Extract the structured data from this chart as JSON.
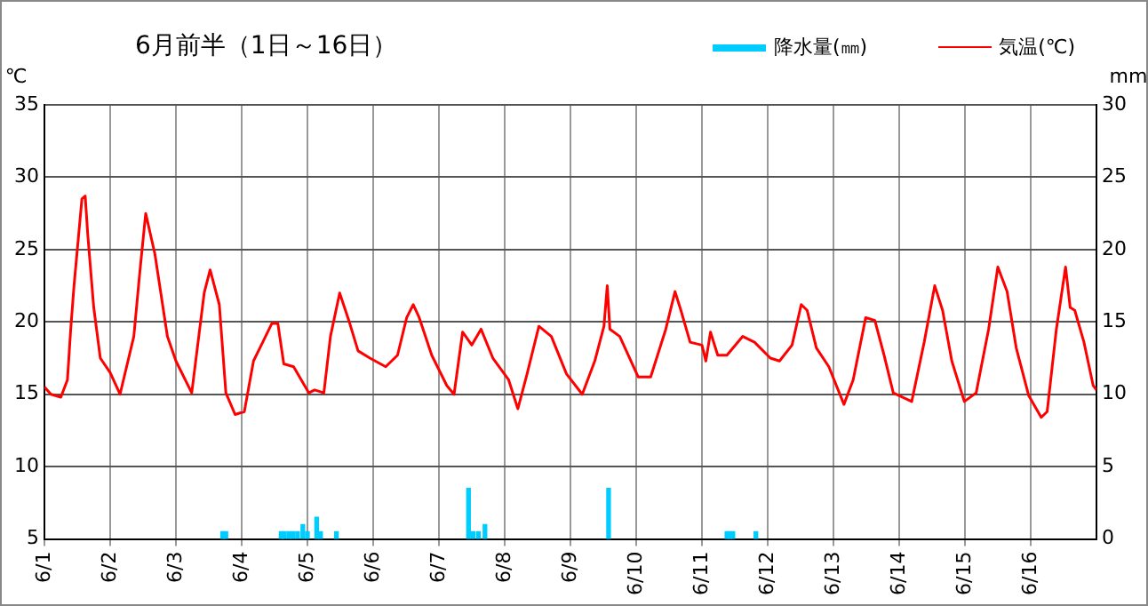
{
  "chart_data": {
    "type": "line",
    "title": "6月前半（1日～16日）",
    "ylabel": "℃",
    "y2label": "mm",
    "legend": "top right",
    "grid": true,
    "xlim": [
      "--06-01",
      "--06-17"
    ],
    "xticks": [
      {
        "value": "--06-01",
        "label": "6/1"
      },
      {
        "value": "--06-02",
        "label": "6/2"
      },
      {
        "value": "--06-03",
        "label": "6/3"
      },
      {
        "value": "--06-04",
        "label": "6/4"
      },
      {
        "value": "--06-05",
        "label": "6/5"
      },
      {
        "value": "--06-06",
        "label": "6/6"
      },
      {
        "value": "--06-07",
        "label": "6/7"
      },
      {
        "value": "--06-08",
        "label": "6/8"
      },
      {
        "value": "--06-09",
        "label": "6/9"
      },
      {
        "value": "--06-10",
        "label": "6/10"
      },
      {
        "value": "--06-11",
        "label": "6/11"
      },
      {
        "value": "--06-12",
        "label": "6/12"
      },
      {
        "value": "--06-13",
        "label": "6/13"
      },
      {
        "value": "--06-14",
        "label": "6/14"
      },
      {
        "value": "--06-15",
        "label": "6/15"
      },
      {
        "value": "--06-16",
        "label": "6/16"
      }
    ],
    "ylim": [
      5,
      35
    ],
    "yticks": [
      5,
      10,
      15,
      20,
      25,
      30,
      35
    ],
    "y2lim": [
      0,
      30
    ],
    "y2ticks": [
      0,
      5,
      10,
      15,
      20,
      25,
      30
    ],
    "series": [
      {
        "name": "降水量(㎜)",
        "type": "bar",
        "axis": "y2",
        "color": "#00ccff",
        "x": [
          "--06-03T17:02",
          "--06-03T18:14",
          "--06-04T14:24",
          "--06-04T15:36",
          "--06-04T17:17",
          "--06-04T18:43",
          "--06-04T20:24",
          "--06-04T22:19",
          "--06-05T00:00",
          "--06-05T03:22",
          "--06-05T04:48",
          "--06-05T10:34",
          "--06-07T10:48",
          "--06-07T12:29",
          "--06-07T14:24",
          "--06-07T16:48",
          "--06-09T13:55",
          "--06-11T09:07",
          "--06-11T10:05",
          "--06-11T11:17",
          "--06-11T19:41"
        ],
        "values": [
          0.5,
          0.5,
          0.5,
          0.5,
          0.5,
          0.5,
          0.5,
          1.0,
          0.5,
          1.5,
          0.5,
          0.5,
          3.5,
          0.5,
          0.5,
          1.0,
          3.5,
          0.5,
          0.5,
          0.5,
          0.5
        ]
      },
      {
        "name": "気温(℃)",
        "axis": "y",
        "color": "#ff0000",
        "x": [
          "--06-01T00:00",
          "--06-01T02:24",
          "--06-01T06:00",
          "--06-01T08:24",
          "--06-01T09:36",
          "--06-01T10:48",
          "--06-01T12:29",
          "--06-01T13:41",
          "--06-01T14:53",
          "--06-01T15:50",
          "--06-01T18:00",
          "--06-01T20:24",
          "--06-02T00:00",
          "--06-02T03:36",
          "--06-02T08:38",
          "--06-02T10:48",
          "--06-02T12:58",
          "--06-02T16:19",
          "--06-02T20:53",
          "--06-03T00:00",
          "--06-03T05:46",
          "--06-03T10:19",
          "--06-03T12:29",
          "--06-03T15:50",
          "--06-03T18:14",
          "--06-03T21:36",
          "--06-04T00:58",
          "--06-04T04:19",
          "--06-04T07:41",
          "--06-04T11:02",
          "--06-04T13:12",
          "--06-04T15:22",
          "--06-04T18:58",
          "--06-05T00:29",
          "--06-05T02:38",
          "--06-05T06:00",
          "--06-05T08:24",
          "--06-05T11:46",
          "--06-05T15:07",
          "--06-05T18:29",
          "--06-05T22:48",
          "--06-06T04:34",
          "--06-06T08:53",
          "--06-06T12:14",
          "--06-06T14:38",
          "--06-06T16:48",
          "--06-06T21:22",
          "--06-07T02:53",
          "--06-07T05:31",
          "--06-07T08:38",
          "--06-07T12:00",
          "--06-07T15:22",
          "--06-07T19:41",
          "--06-08T01:26",
          "--06-08T04:48",
          "--06-08T08:10",
          "--06-08T12:29",
          "--06-08T17:02",
          "--06-08T22:34",
          "--06-09T04:19",
          "--06-09T08:53",
          "--06-09T12:14",
          "--06-09T13:26",
          "--06-09T14:24",
          "--06-09T18:00",
          "--06-10T00:43",
          "--06-10T05:17",
          "--06-10T10:48",
          "--06-10T14:10",
          "--06-10T16:19",
          "--06-10T19:41",
          "--06-11T00:00",
          "--06-11T01:26",
          "--06-11T03:07",
          "--06-11T05:46",
          "--06-11T09:07",
          "--06-11T14:53",
          "--06-11T19:12",
          "--06-12T00:58",
          "--06-12T04:19",
          "--06-12T08:53",
          "--06-12T12:14",
          "--06-12T14:24",
          "--06-12T17:46",
          "--06-12T22:19",
          "--06-13T03:50",
          "--06-13T07:12",
          "--06-13T11:46",
          "--06-13T15:07",
          "--06-13T18:29",
          "--06-13T21:50",
          "--06-14T04:34",
          "--06-14T09:07",
          "--06-14T12:58",
          "--06-14T15:50",
          "--06-14T19:12",
          "--06-14T23:46",
          "--06-15T04:05",
          "--06-15T08:38",
          "--06-15T12:00",
          "--06-15T15:22",
          "--06-15T18:43",
          "--06-15T23:17",
          "--06-16T03:50",
          "--06-16T06:00",
          "--06-16T09:22",
          "--06-16T12:43",
          "--06-16T14:24",
          "--06-16T16:05",
          "--06-16T19:26",
          "--06-16T22:48",
          "--06-17T00:00"
        ],
        "values": [
          15.5,
          15.0,
          14.8,
          16.0,
          19.5,
          22.5,
          26.0,
          28.5,
          28.7,
          26.0,
          21.0,
          17.5,
          16.5,
          15.0,
          19.0,
          23.4,
          27.5,
          24.7,
          19.0,
          17.3,
          15.1,
          22.0,
          23.6,
          21.2,
          15.1,
          13.6,
          13.8,
          17.3,
          18.6,
          19.9,
          19.9,
          17.1,
          16.9,
          15.1,
          15.3,
          15.1,
          19.0,
          22.0,
          20.1,
          18.0,
          17.5,
          16.9,
          17.7,
          20.3,
          21.2,
          20.3,
          17.7,
          15.6,
          15.0,
          19.3,
          18.4,
          19.5,
          17.5,
          16.0,
          14.0,
          16.4,
          19.7,
          19.0,
          16.4,
          15.0,
          17.3,
          19.7,
          22.5,
          19.5,
          19.0,
          16.2,
          16.2,
          19.5,
          22.1,
          20.8,
          18.6,
          18.4,
          17.3,
          19.3,
          17.7,
          17.7,
          19.0,
          18.6,
          17.5,
          17.3,
          18.4,
          21.2,
          20.8,
          18.2,
          16.9,
          14.3,
          16.0,
          20.3,
          20.1,
          17.7,
          15.1,
          14.5,
          18.6,
          22.5,
          20.8,
          17.3,
          14.5,
          15.1,
          19.5,
          23.8,
          22.1,
          18.2,
          14.9,
          13.4,
          13.8,
          19.5,
          23.8,
          21.0,
          20.8,
          18.6,
          15.6,
          15.3
        ]
      }
    ]
  }
}
